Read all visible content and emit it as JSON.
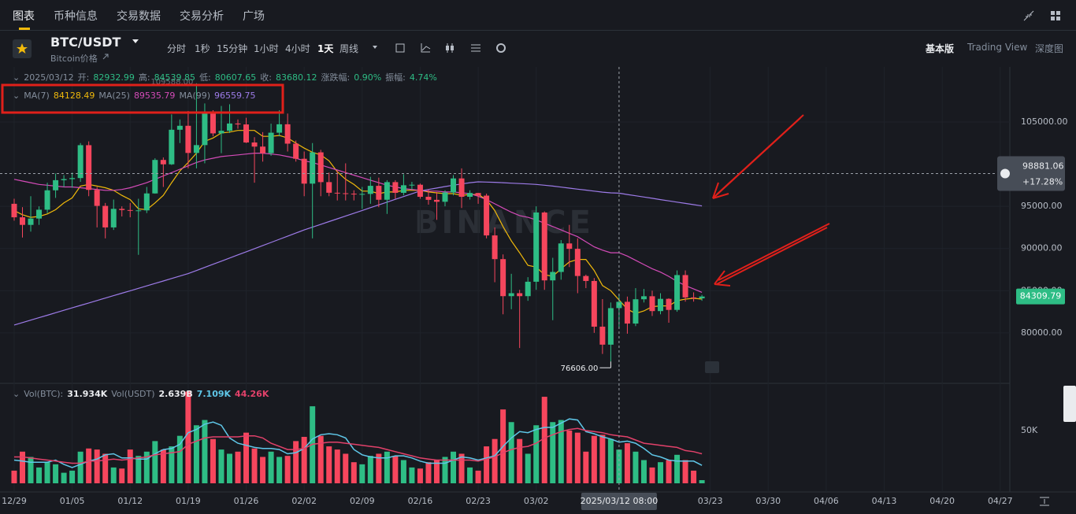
{
  "nav": {
    "tabs": [
      "图表",
      "币种信息",
      "交易数据",
      "交易分析",
      "广场"
    ]
  },
  "toolbar": {
    "symbol": "BTC/USDT",
    "subtitle": "Bitcoin价格",
    "intervals": [
      "分时",
      "1秒",
      "15分钟",
      "1小时",
      "4小时",
      "1天",
      "周线"
    ],
    "views": [
      "基本版",
      "Trading View",
      "深度图"
    ]
  },
  "chart_data": {
    "type": "candlestick",
    "date": "2025/03/12",
    "info": [
      {
        "label": "开:",
        "value": "82932.99"
      },
      {
        "label": "高:",
        "value": "84539.85"
      },
      {
        "label": "低:",
        "value": "80607.65"
      },
      {
        "label": "收:",
        "value": "83680.12"
      },
      {
        "label": "涨跌幅:",
        "value": "0.90%"
      },
      {
        "label": "振幅:",
        "value": "4.74%"
      }
    ],
    "up_color": "#2ebd85",
    "down_color": "#f6465d",
    "candles": [
      [
        95300,
        95900,
        93300,
        93700
      ],
      [
        93700,
        94900,
        91300,
        92800
      ],
      [
        92800,
        96200,
        92000,
        93550
      ],
      [
        93550,
        95000,
        92800,
        94600
      ],
      [
        94600,
        97800,
        94200,
        96900
      ],
      [
        96900,
        98900,
        96000,
        98100
      ],
      [
        98100,
        98700,
        97300,
        98230
      ],
      [
        98230,
        99000,
        97200,
        98350
      ],
      [
        98350,
        102500,
        97900,
        102250
      ],
      [
        102250,
        102700,
        96200,
        96950
      ],
      [
        96950,
        97300,
        92500,
        95050
      ],
      [
        95050,
        95400,
        91200,
        92500
      ],
      [
        92500,
        95800,
        92200,
        94700
      ],
      [
        94700,
        95000,
        93800,
        94560
      ],
      [
        94560,
        95400,
        93700,
        94500
      ],
      [
        94500,
        95900,
        89250,
        94520
      ],
      [
        94520,
        97300,
        94200,
        96530
      ],
      [
        96530,
        100700,
        96500,
        100500
      ],
      [
        100500,
        100800,
        97300,
        99980
      ],
      [
        99980,
        105900,
        99900,
        104080
      ],
      [
        104080,
        105300,
        102500,
        104550
      ],
      [
        104550,
        106300,
        99500,
        101330
      ],
      [
        101330,
        109588,
        99500,
        102260
      ],
      [
        102260,
        107200,
        100100,
        106140
      ],
      [
        106140,
        106400,
        103300,
        103650
      ],
      [
        103650,
        106900,
        101300,
        103960
      ],
      [
        103960,
        107100,
        103700,
        104820
      ],
      [
        104820,
        105300,
        104200,
        104710
      ],
      [
        104710,
        105500,
        102500,
        102570
      ],
      [
        102570,
        103200,
        97800,
        102080
      ],
      [
        102080,
        103800,
        100300,
        101300
      ],
      [
        101300,
        104800,
        101000,
        103730
      ],
      [
        103730,
        106400,
        103300,
        104730
      ],
      [
        104730,
        106000,
        101500,
        102430
      ],
      [
        102430,
        102800,
        100300,
        100640
      ],
      [
        100640,
        101500,
        96200,
        97690
      ],
      [
        97690,
        102500,
        91200,
        101400
      ],
      [
        101400,
        101700,
        96200,
        97870
      ],
      [
        97870,
        99000,
        96200,
        96610
      ],
      [
        96610,
        99200,
        95700,
        96550
      ],
      [
        96550,
        100100,
        95700,
        96500
      ],
      [
        96500,
        96900,
        95700,
        96460
      ],
      [
        96460,
        97300,
        94700,
        96470
      ],
      [
        96470,
        98500,
        95300,
        97430
      ],
      [
        97430,
        98400,
        94900,
        95780
      ],
      [
        95780,
        98100,
        94100,
        97870
      ],
      [
        97870,
        98100,
        95900,
        96600
      ],
      [
        96600,
        98800,
        96300,
        97500
      ],
      [
        97500,
        97900,
        97000,
        97560
      ],
      [
        97560,
        97700,
        95900,
        96130
      ],
      [
        96130,
        97000,
        95200,
        95770
      ],
      [
        95770,
        96700,
        93400,
        95540
      ],
      [
        95540,
        96900,
        95000,
        96640
      ],
      [
        96640,
        98700,
        96300,
        98310
      ],
      [
        98310,
        99500,
        94800,
        96130
      ],
      [
        96130,
        96900,
        95800,
        96580
      ],
      [
        96580,
        96600,
        95300,
        96270
      ],
      [
        96270,
        96500,
        91200,
        91550
      ],
      [
        91550,
        92500,
        86000,
        88740
      ],
      [
        88740,
        89300,
        82200,
        84350
      ],
      [
        84350,
        87000,
        82800,
        84700
      ],
      [
        84700,
        85100,
        78200,
        84350
      ],
      [
        84350,
        86600,
        83800,
        86060
      ],
      [
        86060,
        95000,
        85100,
        94270
      ],
      [
        94270,
        94400,
        85100,
        86220
      ],
      [
        86220,
        88900,
        81500,
        87220
      ],
      [
        87220,
        91000,
        86300,
        90600
      ],
      [
        90600,
        92800,
        87800,
        89960
      ],
      [
        89960,
        91200,
        84700,
        86740
      ],
      [
        86740,
        86900,
        85300,
        86150
      ],
      [
        86150,
        86500,
        80000,
        80730
      ],
      [
        80730,
        84000,
        77500,
        78600
      ],
      [
        78600,
        83600,
        76606,
        82930
      ],
      [
        82932.99,
        84539.85,
        80607.65,
        83680.12
      ],
      [
        83680,
        84300,
        79900,
        81100
      ],
      [
        81100,
        85300,
        80800,
        83980
      ],
      [
        83980,
        85200,
        83600,
        84340
      ],
      [
        84340,
        85000,
        82000,
        82580
      ],
      [
        82580,
        84700,
        82200,
        84030
      ],
      [
        84030,
        84100,
        81200,
        82720
      ],
      [
        82720,
        87400,
        82500,
        86850
      ],
      [
        86850,
        87400,
        83700,
        84200
      ],
      [
        84200,
        84800,
        83700,
        84090
      ],
      [
        84090,
        84500,
        83800,
        84310
      ]
    ],
    "series": [
      {
        "name": "MA(7)",
        "color": "#f0b90b",
        "value_label": "84128.49",
        "values": [
          94500,
          94000,
          93700,
          93800,
          94100,
          94600,
          95400,
          96000,
          97400,
          97600,
          97400,
          97200,
          96900,
          96300,
          95800,
          94700,
          94600,
          95400,
          96300,
          97800,
          99200,
          100200,
          101300,
          102700,
          103100,
          103700,
          103800,
          104000,
          104000,
          104000,
          103300,
          103300,
          103400,
          103100,
          102500,
          101900,
          101400,
          101100,
          100400,
          99100,
          98200,
          97600,
          96800,
          96800,
          96500,
          96700,
          96700,
          96900,
          96900,
          96900,
          96700,
          96600,
          96500,
          96500,
          96300,
          96400,
          96400,
          95800,
          94500,
          92600,
          90900,
          89500,
          88000,
          87800,
          86900,
          86700,
          87600,
          88400,
          88700,
          88700,
          87400,
          85600,
          85000,
          83900,
          82800,
          82300,
          82600,
          83100,
          83200,
          83200,
          83800,
          84000,
          84100,
          84000
        ]
      },
      {
        "name": "MA(25)",
        "color": "#d44bb8",
        "value_label": "89535.79",
        "values": [
          98200,
          98000,
          97800,
          97600,
          97500,
          97400,
          97300,
          97300,
          97200,
          97100,
          97000,
          96900,
          96900,
          97000,
          97200,
          97500,
          97800,
          98200,
          98600,
          99000,
          99400,
          99800,
          100200,
          100500,
          100700,
          100900,
          101000,
          101100,
          101200,
          101300,
          101300,
          101200,
          101100,
          100900,
          100700,
          100400,
          100200,
          99900,
          99600,
          99300,
          99000,
          98700,
          98400,
          98100,
          97800,
          97500,
          97300,
          97100,
          97000,
          96900,
          96800,
          96800,
          96700,
          96700,
          96600,
          96500,
          96200,
          95800,
          95300,
          94800,
          94300,
          93900,
          93700,
          93400,
          93000,
          92600,
          92200,
          91800,
          91400,
          90800,
          90200,
          89800,
          89500,
          89500,
          89100,
          88600,
          88100,
          87600,
          87200,
          86700,
          86100,
          85600,
          85200,
          84800
        ]
      },
      {
        "name": "MA(99)",
        "color": "#9d7be8",
        "value_label": "96559.75",
        "values": [
          80930,
          81220,
          81510,
          81800,
          82090,
          82380,
          82670,
          82960,
          83250,
          83540,
          83830,
          84120,
          84410,
          84700,
          84990,
          85280,
          85570,
          85860,
          86150,
          86440,
          86730,
          87020,
          87390,
          87760,
          88130,
          88500,
          88870,
          89240,
          89610,
          89980,
          90350,
          90720,
          91090,
          91460,
          91830,
          92200,
          92530,
          92860,
          93190,
          93520,
          93850,
          94180,
          94510,
          94840,
          95170,
          95500,
          95830,
          96160,
          96490,
          96820,
          97000,
          97170,
          97340,
          97500,
          97650,
          97800,
          97900,
          97880,
          97850,
          97800,
          97750,
          97700,
          97650,
          97600,
          97500,
          97400,
          97280,
          97160,
          97040,
          96920,
          96800,
          96680,
          96600,
          96560,
          96400,
          96250,
          96100,
          95950,
          95800,
          95650,
          95500,
          95350,
          95200,
          95050
        ]
      }
    ],
    "xlim": [
      -1.71,
      120.16
    ],
    "xticks": [
      {
        "value": 0,
        "label": "12/29"
      },
      {
        "value": 7,
        "label": "01/05"
      },
      {
        "value": 14,
        "label": "01/12"
      },
      {
        "value": 21,
        "label": "01/19"
      },
      {
        "value": 28,
        "label": "01/26"
      },
      {
        "value": 35,
        "label": "02/02"
      },
      {
        "value": 42,
        "label": "02/09"
      },
      {
        "value": 49,
        "label": "02/16"
      },
      {
        "value": 56,
        "label": "02/23"
      },
      {
        "value": 63,
        "label": "03/02"
      },
      {
        "value": 84,
        "label": "03/23"
      },
      {
        "value": 91,
        "label": "03/30"
      },
      {
        "value": 98,
        "label": "04/06"
      },
      {
        "value": 105,
        "label": "04/13"
      },
      {
        "value": 112,
        "label": "04/20"
      },
      {
        "value": 119,
        "label": "04/27"
      }
    ],
    "ylim": [
      74200,
      111250
    ],
    "yticks": [
      {
        "value": 80000,
        "label": "80000.00"
      },
      {
        "value": 85000,
        "label": "85000.00"
      },
      {
        "value": 90000,
        "label": "90000.00"
      },
      {
        "value": 95000,
        "label": "95000.00"
      },
      {
        "value": 105000,
        "label": "105000.00"
      }
    ],
    "grid": true,
    "high_label": {
      "value": 109588,
      "label": "109588.00"
    },
    "low_label": {
      "value": 76606,
      "label": "76606.00"
    },
    "crosshair": {
      "x": 73,
      "x_label": "2025/03/12 08:00",
      "y": {
        "value": 98881.06,
        "label": "98881.06"
      },
      "change_label": "+17.28%"
    },
    "last_price": {
      "value": 84309.79,
      "label": "84309.79"
    },
    "watermark": "BINANCE",
    "volume": {
      "legend": [
        {
          "label": "Vol(BTC):",
          "value": "31.934K",
          "color": "#eaecef"
        },
        {
          "label": "Vol(USDT)",
          "value": "2.639B",
          "color": "#eaecef"
        },
        {
          "value": "7.109K",
          "color": "#5fc7e8"
        },
        {
          "value": "44.26K",
          "color": "#e2416a"
        }
      ],
      "values": [
        12000,
        30000,
        25000,
        15000,
        20000,
        18000,
        10000,
        12000,
        30000,
        33000,
        32000,
        28000,
        15000,
        14000,
        32000,
        26000,
        30000,
        40000,
        32000,
        35000,
        45000,
        87000,
        55000,
        60000,
        42000,
        32000,
        28000,
        30000,
        48000,
        33000,
        25000,
        30000,
        25000,
        26000,
        40000,
        44000,
        73000,
        45000,
        35000,
        32000,
        28000,
        20000,
        18000,
        26000,
        28000,
        30000,
        26000,
        22000,
        15000,
        14000,
        20000,
        22000,
        25000,
        30000,
        28000,
        15000,
        12000,
        35000,
        42000,
        70000,
        58000,
        42000,
        28000,
        55000,
        82000,
        58000,
        60000,
        50000,
        48000,
        30000,
        45000,
        46000,
        42000,
        31934,
        38000,
        30000,
        22000,
        15000,
        20000,
        22000,
        27000,
        22000,
        12000,
        3000
      ],
      "ylim": [
        0,
        92500
      ],
      "yticks": [
        {
          "value": 50000,
          "label": "50K"
        }
      ],
      "lines": [
        {
          "color": "#5fc7e8",
          "values": [
            22000,
            21000,
            20000,
            20000,
            20000,
            22000,
            18000,
            15000,
            18000,
            21000,
            23000,
            27000,
            28000,
            24000,
            24000,
            23000,
            23000,
            28000,
            32000,
            33000,
            37000,
            48000,
            51000,
            56000,
            58000,
            55000,
            43000,
            38000,
            36000,
            34000,
            33000,
            33000,
            32000,
            28000,
            29000,
            33000,
            42000,
            46000,
            47000,
            46000,
            43000,
            32000,
            27000,
            25000,
            24000,
            24000,
            26000,
            26000,
            24000,
            21000,
            19000,
            19000,
            19000,
            22000,
            25000,
            24000,
            22000,
            24000,
            26000,
            35000,
            43000,
            49000,
            48000,
            51000,
            53000,
            53000,
            57000,
            61000,
            60000,
            49000,
            47000,
            44000,
            42000,
            39000,
            40000,
            38000,
            33000,
            27000,
            25000,
            22000,
            21000,
            21000,
            21000,
            17000
          ]
        },
        {
          "color": "#e2416a",
          "values": [
            25000,
            25000,
            24000,
            23000,
            22000,
            21000,
            20000,
            19000,
            19000,
            21000,
            21000,
            22000,
            23000,
            22000,
            23000,
            24000,
            25000,
            27000,
            28000,
            29000,
            30000,
            37000,
            40000,
            43000,
            44000,
            44000,
            44000,
            44000,
            45000,
            45000,
            43000,
            38000,
            35000,
            32000,
            32000,
            33000,
            37000,
            38000,
            39000,
            39000,
            38000,
            37000,
            36000,
            35000,
            34000,
            32000,
            30000,
            28000,
            26000,
            24000,
            23000,
            22000,
            22000,
            22000,
            22000,
            22000,
            21000,
            23000,
            25000,
            29000,
            32000,
            34000,
            35000,
            38000,
            43000,
            46000,
            49000,
            51000,
            52000,
            50000,
            49000,
            48000,
            46000,
            45000,
            44000,
            41000,
            38000,
            37000,
            36000,
            35000,
            34000,
            31000,
            30000,
            28000
          ]
        }
      ]
    }
  }
}
